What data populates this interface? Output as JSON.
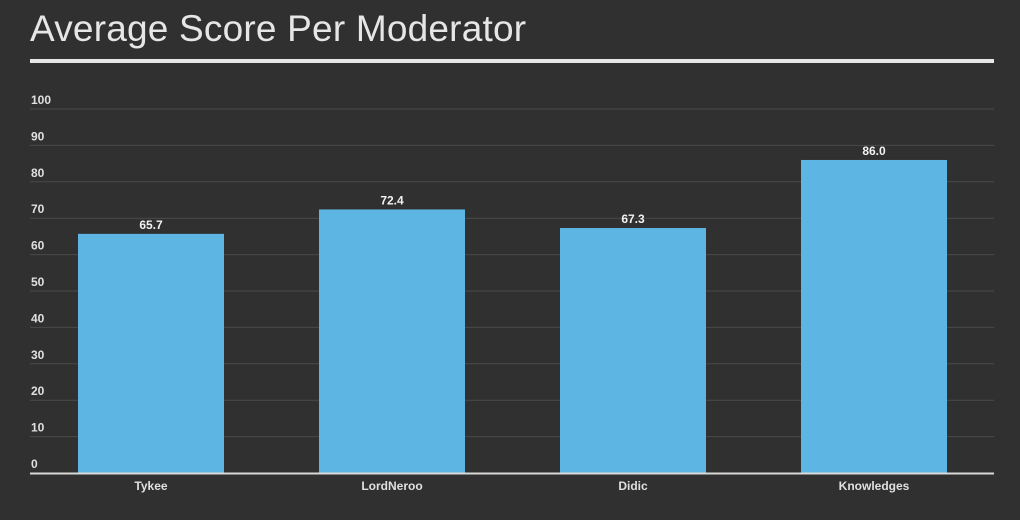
{
  "chart_data": {
    "type": "bar",
    "title": "Average Score Per Moderator",
    "xlabel": "",
    "ylabel": "",
    "categories": [
      "Tykee",
      "LordNeroo",
      "Didic",
      "Knowledges"
    ],
    "values": [
      65.7,
      72.4,
      67.3,
      86.0
    ],
    "value_labels": [
      "65.7",
      "72.4",
      "67.3",
      "86.0"
    ],
    "ylim": [
      0,
      100
    ],
    "yticks": [
      0,
      10,
      20,
      30,
      40,
      50,
      60,
      70,
      80,
      90,
      100
    ],
    "grid": true,
    "legend": "none",
    "colors": {
      "background": "#303030",
      "bar": "#5db5e3",
      "text": "#e0e0e0",
      "grid": "#4a4a4a",
      "axis": "#d9d9d9"
    }
  }
}
